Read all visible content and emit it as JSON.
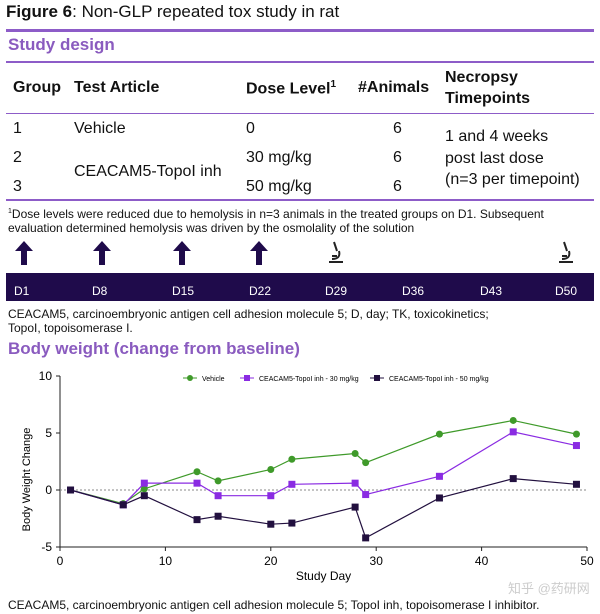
{
  "figure": {
    "label": "Figure 6",
    "title": ": Non-GLP repeated tox study in rat"
  },
  "study_design": {
    "heading": "Study design",
    "headers": [
      "Group",
      "Test Article",
      "Dose Level",
      "#Animals",
      "Necropsy",
      "Timepoints"
    ],
    "dose_sup": "1",
    "rows": [
      {
        "group": "1",
        "article": "Vehicle",
        "dose": "0",
        "animals": "6"
      },
      {
        "group": "2",
        "article": "",
        "dose": "30 mg/kg",
        "animals": "6"
      },
      {
        "group": "3",
        "article": "",
        "dose": "50 mg/kg",
        "animals": "6"
      }
    ],
    "merged_article": "CEACAM5-TopoI inh",
    "necropsy": [
      "1 and 4 weeks",
      "post last dose",
      "(n=3 per timepoint)"
    ],
    "footnote_sup": "1",
    "footnote": "Dose levels were reduced due to hemolysis in n=3 animals in the treated groups on D1. Subsequent evaluation determined hemolysis was driven by the osmolality of the solution"
  },
  "timeline": {
    "days": [
      "D1",
      "D8",
      "D15",
      "D22",
      "D29",
      "D36",
      "D43",
      "D50"
    ],
    "events": [
      "dose-arrow",
      "dose-arrow",
      "dose-arrow",
      "dose-arrow",
      "microscope",
      "",
      "",
      "microscope"
    ],
    "color": "#1f0b4b",
    "abbrev": [
      "CEACAM5, carcinoembryonic antigen cell adhesion molecule 5; D, day; TK, toxicokinetics;",
      "TopoI, topoisomerase I."
    ]
  },
  "body_weight": {
    "heading": "Body weight (change from baseline)",
    "footnote": "CEACAM5, carcinoembryonic antigen cell adhesion molecule 5; TopoI inh, topoisomerase I inhibitor."
  },
  "watermark": "知乎 @药研网",
  "chart_data": {
    "type": "line",
    "xlabel": "Study Day",
    "ylabel": "Body Weight Change",
    "xlim": [
      0,
      50
    ],
    "ylim": [
      -5,
      10
    ],
    "xticks": [
      0,
      10,
      20,
      30,
      40,
      50
    ],
    "yticks": [
      -5,
      0,
      5,
      10
    ],
    "legend": "top-center",
    "x": [
      1,
      6,
      8,
      13,
      15,
      20,
      22,
      28,
      29,
      36,
      43,
      49
    ],
    "series": [
      {
        "name": "Vehicle",
        "color": "#3f9a2a",
        "marker": "circle",
        "values": [
          0,
          -1.2,
          0.1,
          1.6,
          0.8,
          1.8,
          2.7,
          3.2,
          2.4,
          4.9,
          6.1,
          4.9
        ]
      },
      {
        "name": "CEACAM5-TopoI inh - 30 mg/kg",
        "color": "#8a2be2",
        "marker": "square",
        "values": [
          0,
          -1.3,
          0.6,
          0.6,
          -0.5,
          -0.5,
          0.5,
          0.6,
          -0.4,
          1.2,
          5.1,
          3.9
        ]
      },
      {
        "name": "CEACAM5-TopoI inh - 50 mg/kg",
        "color": "#22103f",
        "marker": "square",
        "values": [
          0,
          -1.3,
          -0.5,
          -2.6,
          -2.3,
          -3.0,
          -2.9,
          -1.5,
          -4.2,
          -0.7,
          1.0,
          0.5
        ]
      }
    ]
  }
}
